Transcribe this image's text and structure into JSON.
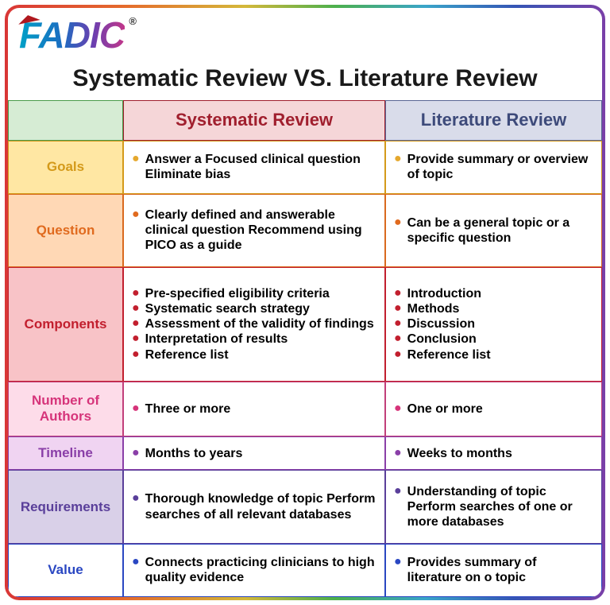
{
  "logo_text": "FADIC",
  "reg_symbol": "®",
  "title": "Systematic Review VS. Literature Review",
  "col_headers": {
    "systematic": "Systematic Review",
    "literature": "Literature Review"
  },
  "header_colors": {
    "empty_bg": "#d6ecd4",
    "empty_border": "#4b9b4b",
    "sys_bg": "#f5d6d8",
    "sys_text": "#a01f2e",
    "sys_border": "#a01f2e",
    "lit_bg": "#d9dcea",
    "lit_text": "#3d4a7a",
    "lit_border": "#5a6694"
  },
  "rows": [
    {
      "label": "Goals",
      "cat_bg": "#ffe7a3",
      "cat_text": "#d49a1a",
      "cat_border": "#d49a1a",
      "bullet_color": "#e5a82e",
      "systematic": [
        "Answer a Focused clinical question Eliminate bias"
      ],
      "literature": [
        "Provide summary or overview of topic"
      ]
    },
    {
      "label": "Question",
      "cat_bg": "#ffd8b5",
      "cat_text": "#e06a1e",
      "cat_border": "#d96a1e",
      "bullet_color": "#e06a1e",
      "systematic": [
        "Clearly defined and answerable clinical question Recommend using PICO as a guide"
      ],
      "literature": [
        "Can be a general topic or a specific question"
      ]
    },
    {
      "label": "Components",
      "cat_bg": "#f8c3c7",
      "cat_text": "#c21f2e",
      "cat_border": "#c21f2e",
      "bullet_color": "#c21f2e",
      "systematic": [
        "Pre-specified eligibility criteria",
        "Systematic search strategy",
        "Assessment of the validity of findings",
        "Interpretation of results",
        "Reference list"
      ],
      "literature": [
        "Introduction",
        "Methods",
        "Discussion",
        "Conclusion",
        "Reference list"
      ]
    },
    {
      "label": "Number of Authors",
      "cat_bg": "#fddce9",
      "cat_text": "#d6347a",
      "cat_border": "#c23f7a",
      "bullet_color": "#d6347a",
      "systematic": [
        "Three or more"
      ],
      "literature": [
        "One or more"
      ]
    },
    {
      "label": "Timeline",
      "cat_bg": "#f0d4f2",
      "cat_text": "#8a3fa8",
      "cat_border": "#8a3fa8",
      "bullet_color": "#8a3fa8",
      "systematic": [
        "Months to years"
      ],
      "literature": [
        "Weeks to months"
      ]
    },
    {
      "label": "Requirements",
      "cat_bg": "#d9d0e8",
      "cat_text": "#5a3f9a",
      "cat_border": "#5a3f9a",
      "bullet_color": "#5a3f9a",
      "systematic": [
        "Thorough knowledge of topic Perform searches of all relevant databases"
      ],
      "literature": [
        "Understanding of topic Perform searches of one or more databases"
      ]
    },
    {
      "label": "Value",
      "cat_bg": "#ffffff",
      "cat_text": "#2a47c2",
      "cat_border": "#2a47c2",
      "bullet_color": "#2a47c2",
      "systematic": [
        "Connects practicing clinicians to high quality evidence"
      ],
      "literature": [
        "Provides summary of literature on o topic"
      ]
    }
  ]
}
